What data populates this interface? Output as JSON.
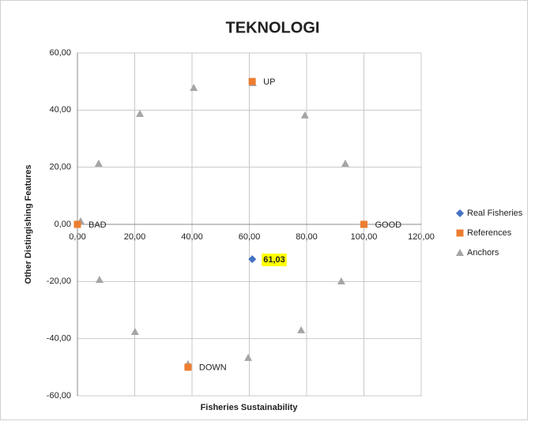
{
  "chart_data": {
    "type": "scatter",
    "title": "TEKNOLOGI",
    "xlabel": "Fisheries Sustainability",
    "ylabel": "Other Distingishing Features",
    "xlim": [
      0,
      120
    ],
    "ylim": [
      -60,
      60
    ],
    "xticks": [
      {
        "value": 0,
        "label": "0,00"
      },
      {
        "value": 20,
        "label": "20,00"
      },
      {
        "value": 40,
        "label": "40,00"
      },
      {
        "value": 60,
        "label": "60,00"
      },
      {
        "value": 80,
        "label": "80,00"
      },
      {
        "value": 100,
        "label": "100,00"
      },
      {
        "value": 120,
        "label": "120,00"
      }
    ],
    "yticks": [
      {
        "value": -60,
        "label": "-60,00"
      },
      {
        "value": -40,
        "label": "-40,00"
      },
      {
        "value": -20,
        "label": "-20,00"
      },
      {
        "value": 0,
        "label": "0,00"
      },
      {
        "value": 20,
        "label": "20,00"
      },
      {
        "value": 40,
        "label": "40,00"
      },
      {
        "value": 60,
        "label": "60,00"
      }
    ],
    "grid": true,
    "legend": "right",
    "series": [
      {
        "name": "Real Fisheries",
        "color": "#4472c4",
        "marker": "diamond",
        "x": [
          61.03
        ],
        "values": [
          -12.2
        ],
        "point_labels": [
          "61,03"
        ]
      },
      {
        "name": "References",
        "color": "#ed7d31",
        "marker": "square",
        "x": [
          0,
          100,
          61,
          38.6
        ],
        "values": [
          0,
          0,
          50,
          -50
        ],
        "point_labels": [
          "BAD",
          "GOOD",
          "UP",
          "DOWN"
        ]
      },
      {
        "name": "Anchors",
        "color": "#a5a5a5",
        "marker": "triangle",
        "x": [
          1.1,
          7.4,
          21.8,
          40.6,
          61.2,
          79.4,
          93.5,
          100,
          92.1,
          78.1,
          59.6,
          38.6,
          20.1,
          7.7
        ],
        "values": [
          1.1,
          21.3,
          38.7,
          47.8,
          49.5,
          38.2,
          21.3,
          0,
          -19.9,
          -37,
          -46.7,
          -48.9,
          -37.6,
          -19.4
        ]
      }
    ]
  }
}
